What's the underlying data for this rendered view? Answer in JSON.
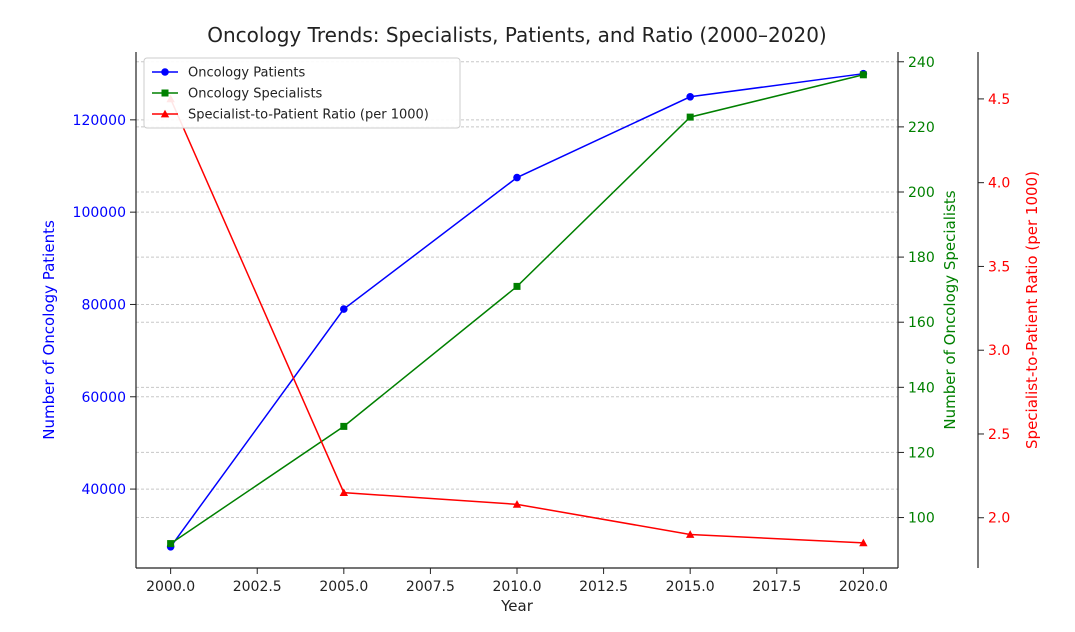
{
  "chart_data": {
    "type": "line",
    "title": "Oncology Trends: Specialists, Patients, and Ratio (2000–2020)",
    "xlabel": "Year",
    "x": [
      2000,
      2005,
      2010,
      2015,
      2020
    ],
    "xlim": [
      1999,
      2021
    ],
    "xticks": [
      2000,
      2002.5,
      2005,
      2007.5,
      2010,
      2012.5,
      2015,
      2017.5,
      2020
    ],
    "xtick_labels": [
      "2000.0",
      "2002.5",
      "2005.0",
      "2007.5",
      "2010.0",
      "2012.5",
      "2015.0",
      "2017.5",
      "2020.0"
    ],
    "grid": true,
    "legend_position": "top-left",
    "series": [
      {
        "name": "Oncology Patients",
        "axis": "left",
        "marker": "circle",
        "color": "#0000ff",
        "values": [
          27500,
          79000,
          107500,
          125000,
          130000
        ]
      },
      {
        "name": "Oncology Specialists",
        "axis": "right",
        "marker": "square",
        "color": "#008000",
        "values": [
          92,
          128,
          171,
          223,
          236
        ]
      },
      {
        "name": "Specialist-to-Patient Ratio (per 1000)",
        "axis": "far-right",
        "marker": "triangle",
        "color": "#ff0000",
        "values": [
          4.5,
          2.15,
          2.08,
          1.9,
          1.85
        ]
      }
    ],
    "axes": {
      "left": {
        "label": "Number of Oncology Patients",
        "color": "#0000ff",
        "ylim": [
          22900,
          134700
        ],
        "ticks": [
          40000,
          60000,
          80000,
          100000,
          120000
        ],
        "tick_labels": [
          "40000",
          "60000",
          "80000",
          "100000",
          "120000"
        ]
      },
      "right": {
        "label": "Number of Oncology Specialists",
        "color": "#008000",
        "ylim": [
          84.5,
          243
        ],
        "ticks": [
          100,
          120,
          140,
          160,
          180,
          200,
          220,
          240
        ],
        "tick_labels": [
          "100",
          "120",
          "140",
          "160",
          "180",
          "200",
          "220",
          "240"
        ]
      },
      "far_right": {
        "label": "Specialist-to-Patient Ratio (per 1000)",
        "color": "#ff0000",
        "ylim": [
          1.7,
          4.78
        ],
        "ticks": [
          2.0,
          2.5,
          3.0,
          3.5,
          4.0,
          4.5
        ],
        "tick_labels": [
          "2.0",
          "2.5",
          "3.0",
          "3.5",
          "4.0",
          "4.5"
        ]
      }
    }
  }
}
